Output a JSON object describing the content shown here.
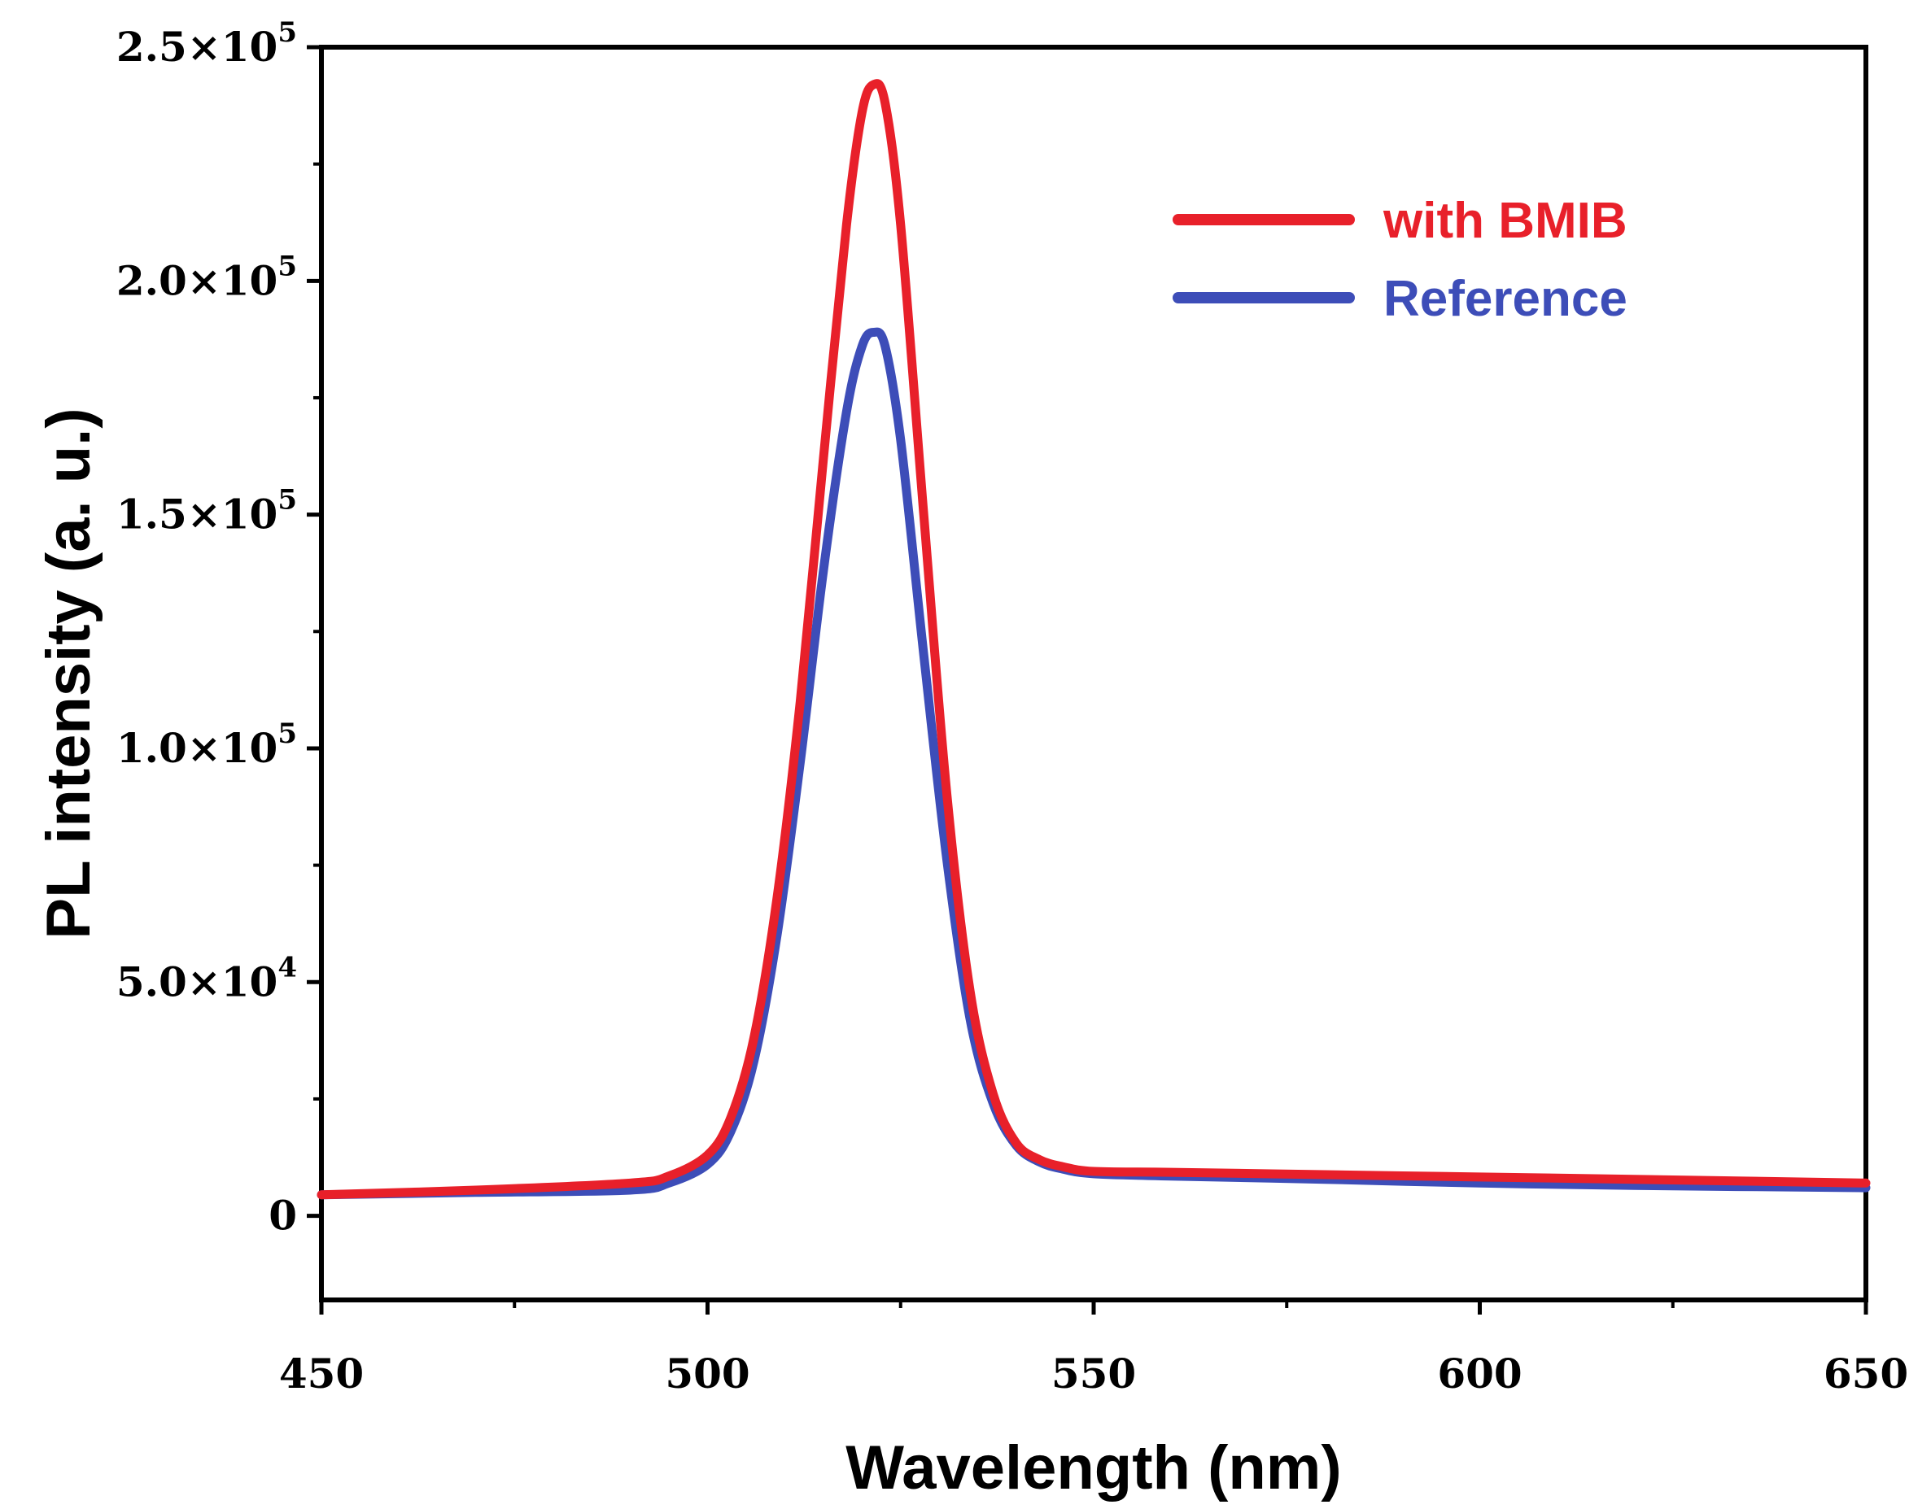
{
  "chart_data": {
    "type": "line",
    "title": "",
    "xlabel": "Wavelength (nm)",
    "ylabel": "PL intensity (a. u.)",
    "xlim": [
      450,
      650
    ],
    "ylim": [
      -18000,
      250000
    ],
    "x_ticks": [
      450,
      500,
      550,
      600,
      650
    ],
    "x_tick_labels": [
      "450",
      "500",
      "550",
      "600",
      "650"
    ],
    "x_minor_ticks": [
      475,
      525,
      575,
      625
    ],
    "y_ticks": [
      0,
      50000,
      100000,
      150000,
      200000,
      250000
    ],
    "y_tick_labels": [
      {
        "mantissa": "0",
        "exponent": ""
      },
      {
        "mantissa": "5.0×10",
        "exponent": "4"
      },
      {
        "mantissa": "1.0×10",
        "exponent": "5"
      },
      {
        "mantissa": "1.5×10",
        "exponent": "5"
      },
      {
        "mantissa": "2.0×10",
        "exponent": "5"
      },
      {
        "mantissa": "2.5×10",
        "exponent": "5"
      }
    ],
    "y_minor_ticks": [
      25000,
      75000,
      125000,
      175000,
      225000
    ],
    "grid": false,
    "legend_position": "top-right",
    "series": [
      {
        "name": "with BMIB",
        "color": "#e8202a",
        "x": [
          450,
          470,
          490,
          495,
          500,
          503,
          506,
          509,
          512,
          515,
          518,
          520,
          521.5,
          523,
          525,
          528,
          531,
          534,
          537,
          540,
          543,
          546,
          550,
          560,
          580,
          600,
          620,
          650
        ],
        "y": [
          4500,
          5500,
          7000,
          8500,
          13000,
          21000,
          38000,
          68000,
          110000,
          162000,
          212000,
          236000,
          242000,
          238000,
          212000,
          150000,
          90000,
          48000,
          26000,
          15500,
          12000,
          10500,
          9500,
          9300,
          8800,
          8300,
          7800,
          7000
        ]
      },
      {
        "name": "Reference",
        "color": "#3d4db8",
        "x": [
          450,
          470,
          490,
          495,
          500,
          503,
          506,
          509,
          512,
          515,
          518,
          520,
          521.5,
          523,
          525,
          528,
          531,
          534,
          537,
          540,
          543,
          546,
          550,
          560,
          580,
          600,
          620,
          650
        ],
        "y": [
          4500,
          5000,
          5500,
          7000,
          11000,
          18000,
          33000,
          60000,
          97000,
          138000,
          172000,
          186000,
          189000,
          186000,
          166000,
          120000,
          76000,
          42000,
          24000,
          15000,
          11500,
          10000,
          9000,
          8500,
          7800,
          7000,
          6500,
          6000
        ]
      }
    ]
  }
}
